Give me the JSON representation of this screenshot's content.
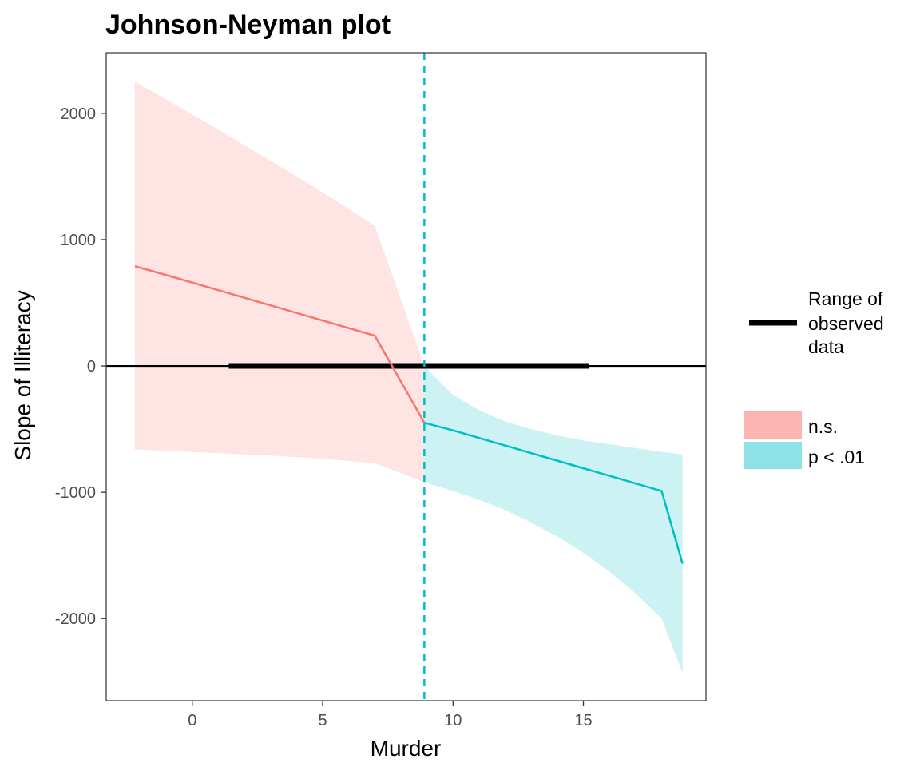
{
  "chart_data": {
    "type": "line",
    "title": "Johnson-Neyman plot",
    "xlabel": "Murder",
    "ylabel": "Slope of Illiteracy",
    "xlim": [
      -3.3,
      19.7
    ],
    "ylim": [
      -2650,
      2480
    ],
    "x_ticks": [
      0,
      5,
      10,
      15
    ],
    "y_ticks": [
      -2000,
      -1000,
      0,
      1000,
      2000
    ],
    "x_tick_labels": [
      "0",
      "5",
      "10",
      "15"
    ],
    "y_tick_labels": [
      "-2000",
      "-1000",
      "0",
      "1000",
      "2000"
    ],
    "grid": false,
    "legend_position": "right",
    "reference_line_y": 0,
    "johnson_neyman_point": 8.9,
    "observed_range": {
      "label_lines": [
        "Range of",
        "observed",
        "data"
      ],
      "x": [
        1.4,
        15.2
      ],
      "color": "#000000"
    },
    "series": [
      {
        "name": "n.s.",
        "color": "#f8766d",
        "fill_color": "#f8766d",
        "x": [
          -2.2,
          -1,
          1,
          3,
          5,
          7,
          8.9
        ],
        "y": [
          790,
          720,
          600,
          480,
          360,
          240,
          -450
        ],
        "lower": [
          -660,
          -670,
          -690,
          -710,
          -735,
          -770,
          -920
        ],
        "upper": [
          2250,
          2110,
          1870,
          1625,
          1375,
          1110,
          0
        ]
      },
      {
        "name": "p < .01",
        "color": "#00bfc4",
        "fill_color": "#00bfc4",
        "x": [
          8.9,
          10,
          11,
          12,
          13,
          14,
          15,
          16,
          17,
          18,
          18.8
        ],
        "y": [
          -450,
          -510,
          -570,
          -630,
          -690,
          -750,
          -810,
          -870,
          -930,
          -990,
          -1565
        ],
        "lower": [
          -920,
          -990,
          -1060,
          -1140,
          -1240,
          -1350,
          -1480,
          -1630,
          -1800,
          -2000,
          -2430
        ],
        "upper": [
          0,
          -230,
          -350,
          -440,
          -500,
          -550,
          -590,
          -620,
          -650,
          -680,
          -700
        ]
      }
    ]
  }
}
